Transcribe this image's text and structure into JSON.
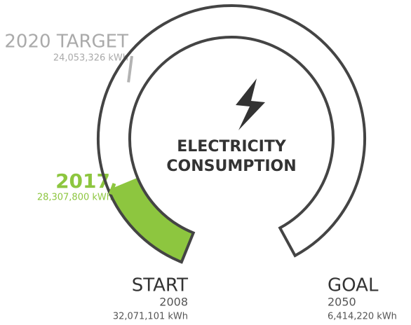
{
  "chart_data": {
    "type": "gauge",
    "title": "ELECTRICITY CONSUMPTION",
    "start": {
      "name": "START",
      "year": 2008,
      "value": 32071101,
      "value_label": "32,071,101 kWh"
    },
    "goal": {
      "name": "GOAL",
      "year": 2050,
      "value": 6414220,
      "value_label": "6,414,220 kWh"
    },
    "current": {
      "year": 2017,
      "value": 28307800,
      "value_label": "28,307,800 kWh",
      "color": "#8dc63f"
    },
    "target": {
      "name": "2020 TARGET",
      "value": 24053326,
      "value_label": "24,053,326 kWh",
      "color": "#b3b3b3"
    }
  }
}
